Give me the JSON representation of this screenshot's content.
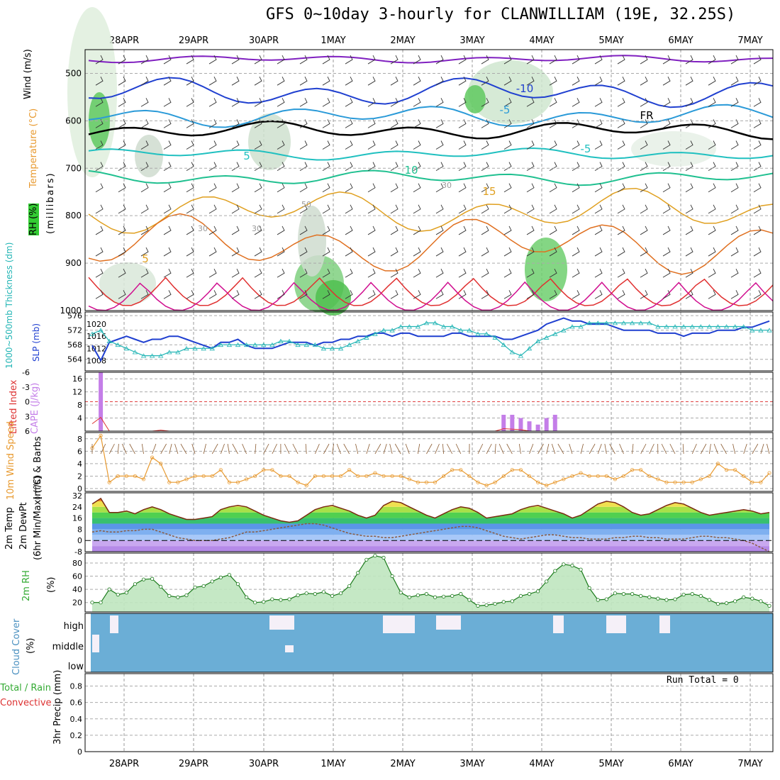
{
  "title": "GFS 0~10day 3-hourly for CLANWILLIAM (19E, 32.25S)",
  "dates": [
    "28APR",
    "29APR",
    "30APR",
    "1MAY",
    "2MAY",
    "3MAY",
    "4MAY",
    "5MAY",
    "6MAY",
    "7MAY"
  ],
  "labels": {
    "upper": {
      "wind": "Wind (m/s)",
      "temperature": "Temperature (°C)",
      "rh": "RH (%)",
      "millibars": "(millibars)"
    },
    "pressure": {
      "thickness": "1000~500mb Thickness (dm)",
      "slp": "SLP (mb)"
    },
    "stability": {
      "li": "Lifted Index",
      "cape": "CAPE (J/kg)"
    },
    "wind10": {
      "speed": "10m Wind Speed",
      "barbs": "(m/s) & Barbs"
    },
    "temp2m": {
      "temp": "2m Temp",
      "dew": "2m DewPt",
      "minmax": "(6hr Min/Max) (°C)"
    },
    "rh2m": {
      "rh": "2m RH",
      "unit": "(%)"
    },
    "cloud": {
      "title": "Cloud Cover",
      "unit": "(%)",
      "levels": [
        "high",
        "middle",
        "low"
      ]
    },
    "precip": {
      "total": "Total / Rain",
      "conv": "Convective",
      "title": "3hr Precip (mm)",
      "run_total": "Run Total = 0"
    }
  },
  "colors": {
    "slp": "#1f3fd0",
    "thickness": "#22b5b5",
    "li": "#dd3333",
    "cape": "#c47ee8",
    "wind": "#e89a30",
    "cloud_bg": "#6baed6",
    "cloud_clear": "#f5f0f8",
    "rh": "#33cc33"
  },
  "chart_data": [
    {
      "type": "area",
      "title": "Upper air cross-section",
      "ylabel": "millibars",
      "ylim": [
        1000,
        450
      ],
      "yticks": [
        500,
        600,
        700,
        800,
        900,
        1000
      ],
      "temp_contour_labels": [
        "-10",
        "-5",
        "FR",
        "-5",
        "5",
        "10",
        "15",
        "5",
        "30",
        "50",
        "30",
        "30"
      ]
    },
    {
      "type": "line",
      "title": "SLP and 1000~500mb Thickness",
      "y_left": {
        "label": "1000~500mb Thickness (dm)",
        "ticks": [
          564,
          568,
          572,
          576
        ]
      },
      "y_right": {
        "label": "SLP (mb)",
        "ticks": [
          1008,
          1012,
          1016,
          1020
        ]
      },
      "series": [
        {
          "name": "SLP",
          "values": [
            1013,
            1008,
            1014,
            1015,
            1016,
            1015,
            1014,
            1015,
            1015,
            1016,
            1016,
            1015,
            1014,
            1013,
            1012,
            1014,
            1014,
            1015,
            1013,
            1012,
            1012,
            1012,
            1013,
            1014,
            1014,
            1014,
            1013,
            1014,
            1014,
            1015,
            1015,
            1016,
            1016,
            1017,
            1017,
            1016,
            1017,
            1017,
            1016,
            1016,
            1016,
            1016,
            1017,
            1017,
            1016,
            1016,
            1016,
            1016,
            1015,
            1015,
            1016,
            1017,
            1018,
            1020,
            1021,
            1022,
            1021,
            1021,
            1020,
            1020,
            1020,
            1019,
            1018,
            1018,
            1018,
            1018,
            1017,
            1017,
            1017,
            1016,
            1017,
            1017,
            1017,
            1018,
            1018,
            1018,
            1019,
            1019,
            1020,
            1021
          ]
        },
        {
          "name": "Thickness",
          "values": [
            571,
            572,
            569,
            568,
            567,
            566,
            565,
            565,
            565,
            566,
            566,
            567,
            567,
            567,
            567,
            568,
            568,
            568,
            568,
            568,
            568,
            568,
            569,
            569,
            568,
            568,
            568,
            567,
            567,
            567,
            568,
            569,
            570,
            571,
            572,
            572,
            573,
            573,
            573,
            574,
            574,
            573,
            573,
            572,
            572,
            571,
            571,
            570,
            568,
            566,
            565,
            567,
            569,
            570,
            571,
            572,
            573,
            573,
            574,
            574,
            574,
            574,
            574,
            574,
            574,
            574,
            573,
            573,
            573,
            573,
            573,
            573,
            573,
            573,
            573,
            573,
            573,
            572,
            572,
            572
          ]
        }
      ]
    },
    {
      "type": "line",
      "title": "Lifted Index and CAPE",
      "y_left": {
        "label": "Lifted Index",
        "ticks": [
          6,
          3,
          0,
          -3,
          -6
        ]
      },
      "y_right": {
        "label": "CAPE (J/kg)",
        "ticks": [
          4,
          8,
          12,
          16
        ]
      },
      "series": [
        {
          "name": "Lifted Index",
          "values": [
            4.5,
            3.2,
            6,
            6,
            6,
            6,
            6,
            6,
            5.8,
            6,
            6,
            6,
            6,
            6,
            6,
            6,
            6,
            6,
            6,
            6,
            6,
            6,
            6,
            6,
            6,
            6,
            6,
            6,
            6,
            6,
            6,
            6,
            6,
            6,
            6,
            6,
            6,
            6,
            6,
            6,
            6,
            6,
            6,
            6,
            6,
            6,
            6,
            6,
            5.5,
            5.6,
            5.7,
            6,
            6,
            6,
            6,
            6,
            6,
            6,
            6,
            6,
            6,
            6,
            6,
            6,
            6,
            6,
            6,
            6,
            6,
            6,
            6,
            6,
            6,
            6,
            6,
            6,
            6,
            6,
            6,
            6
          ]
        },
        {
          "name": "CAPE",
          "values": [
            0,
            18,
            0,
            0,
            0,
            0,
            0,
            0,
            0,
            0,
            0,
            0,
            0,
            0,
            0,
            0,
            0,
            0,
            0,
            0,
            0,
            0,
            0,
            0,
            0,
            0,
            0,
            0,
            0,
            0,
            0,
            0,
            0,
            0,
            0,
            0,
            0,
            0,
            0,
            0,
            0,
            0,
            0,
            0,
            0,
            0,
            0,
            0,
            5,
            5,
            4,
            3,
            2,
            4,
            5,
            0,
            0,
            0,
            0,
            0,
            0,
            0,
            0,
            0,
            0,
            0,
            0,
            0,
            0,
            0,
            0,
            0,
            0,
            0,
            0,
            0,
            0,
            0,
            0,
            0
          ]
        }
      ]
    },
    {
      "type": "line",
      "title": "10m Wind Speed",
      "ylabel": "(m/s)",
      "yticks": [
        0,
        2,
        4,
        6,
        8
      ],
      "series": [
        {
          "name": "10m Wind Speed",
          "values": [
            6.5,
            8.5,
            1,
            2,
            2,
            2,
            1.5,
            5,
            4,
            1,
            1,
            1.5,
            2,
            2,
            2,
            3,
            1,
            1,
            1.5,
            2,
            3,
            3,
            2,
            2,
            1,
            0.5,
            2,
            2,
            2,
            2,
            3,
            2,
            2,
            2.5,
            2,
            2,
            2,
            1.5,
            1,
            1,
            1,
            2,
            3,
            3,
            2,
            1,
            0.5,
            1,
            2,
            3,
            3,
            2,
            1,
            0.5,
            1,
            1.5,
            2,
            2.5,
            2,
            2,
            2,
            1.5,
            2,
            3,
            3,
            2,
            1.5,
            1,
            1,
            1,
            1,
            1.5,
            2,
            4,
            3,
            3,
            2,
            1,
            1,
            2.5
          ]
        }
      ]
    },
    {
      "type": "area",
      "title": "2m Temp and 2m DewPt",
      "ylabel": "(°C)",
      "yticks": [
        -8,
        0,
        8,
        16,
        24,
        32
      ],
      "series": [
        {
          "name": "2m Temp",
          "values": [
            26,
            30,
            20,
            20,
            21,
            19,
            22,
            24,
            22,
            19,
            17,
            15,
            15,
            16,
            17,
            22,
            24,
            25,
            24,
            21,
            18,
            16,
            14,
            13,
            14,
            18,
            22,
            24,
            25,
            23,
            21,
            18,
            16,
            18,
            25,
            28,
            27,
            24,
            21,
            18,
            16,
            19,
            22,
            24,
            23,
            20,
            16,
            17,
            18,
            19,
            22,
            24,
            25,
            23,
            21,
            19,
            16,
            18,
            22,
            26,
            28,
            27,
            24,
            20,
            18,
            19,
            22,
            25,
            27,
            26,
            23,
            20,
            18,
            19,
            20,
            21,
            22,
            21,
            19,
            20
          ]
        },
        {
          "name": "2m DewPt",
          "values": [
            6,
            7,
            6,
            6,
            7,
            7,
            8,
            8,
            6,
            4,
            2,
            1,
            0,
            0,
            0,
            1,
            2,
            4,
            6,
            6,
            7,
            8,
            9,
            10,
            11,
            12,
            12,
            11,
            9,
            7,
            5,
            4,
            3,
            3,
            2,
            2,
            3,
            4,
            5,
            6,
            7,
            8,
            9,
            10,
            10,
            9,
            7,
            5,
            3,
            2,
            1,
            2,
            3,
            4,
            4,
            3,
            2,
            2,
            1,
            1,
            1,
            2,
            2,
            3,
            3,
            2,
            2,
            1,
            1,
            1,
            2,
            3,
            3,
            2,
            2,
            1,
            0,
            -2,
            -5,
            -8
          ]
        }
      ]
    },
    {
      "type": "area",
      "title": "2m RH",
      "ylabel": "(%)",
      "yticks": [
        20,
        40,
        60,
        80
      ],
      "series": [
        {
          "name": "2m RH",
          "values": [
            20,
            20,
            40,
            32,
            35,
            48,
            55,
            56,
            44,
            30,
            28,
            31,
            43,
            45,
            52,
            58,
            62,
            48,
            28,
            20,
            21,
            25,
            24,
            25,
            31,
            34,
            33,
            36,
            30,
            34,
            45,
            65,
            85,
            91,
            88,
            60,
            35,
            28,
            31,
            33,
            28,
            29,
            30,
            33,
            24,
            15,
            16,
            18,
            21,
            22,
            30,
            33,
            37,
            52,
            68,
            78,
            76,
            70,
            42,
            24,
            25,
            34,
            33,
            33,
            30,
            28,
            26,
            24,
            25,
            32,
            33,
            30,
            24,
            18,
            19,
            22,
            28,
            26,
            22,
            15
          ]
        }
      ]
    },
    {
      "type": "bar",
      "title": "Cloud Cover",
      "categories": [
        "high",
        "middle",
        "low"
      ],
      "ylabel": "(%)"
    },
    {
      "type": "bar",
      "title": "3hr Precip (mm)",
      "ylim": [
        0,
        0.8
      ],
      "yticks": [
        0,
        0.2,
        0.4,
        0.6,
        0.8
      ],
      "run_total": 0
    }
  ]
}
